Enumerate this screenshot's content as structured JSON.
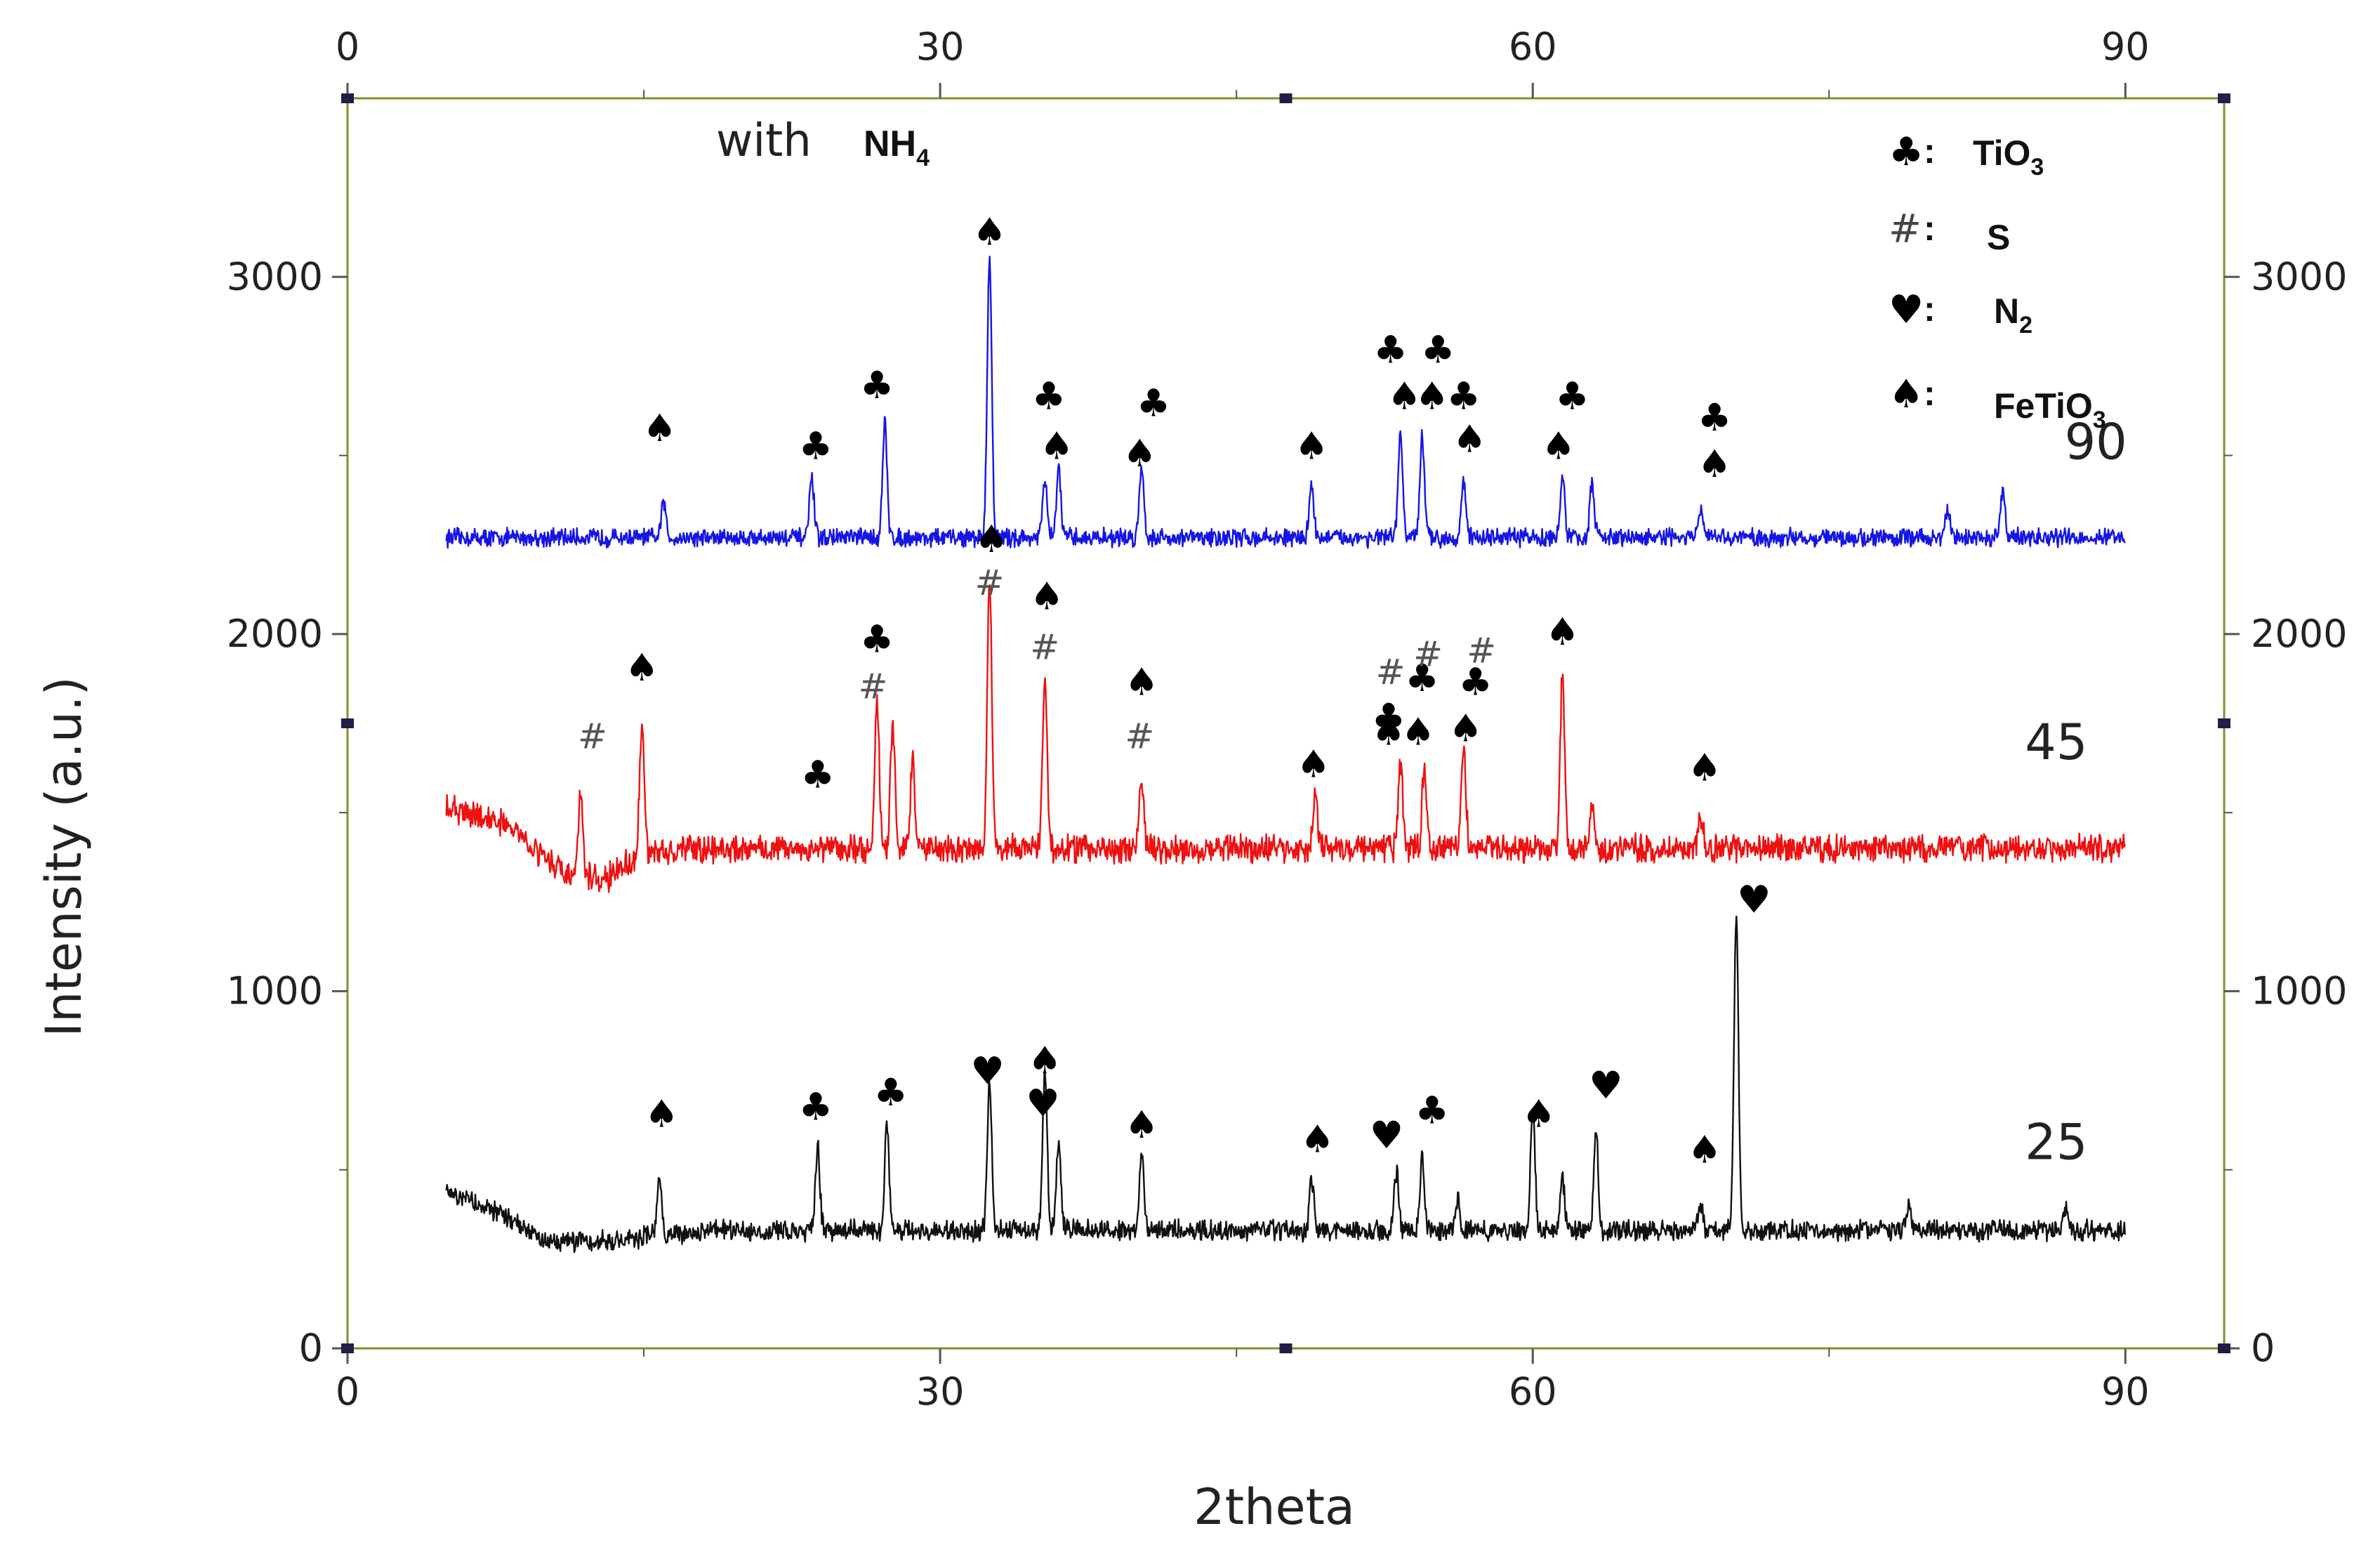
{
  "chart_data": {
    "type": "line",
    "title": "",
    "xlabel": "2theta",
    "ylabel": "Intensity (a.u.)",
    "xlim": [
      0,
      95
    ],
    "ylim": [
      0,
      3500
    ],
    "x_ticks": [
      0,
      30,
      60,
      90
    ],
    "y_ticks": [
      0,
      1000,
      2000,
      3000
    ],
    "x_tick_labels": [
      "0",
      "30",
      "60",
      "90"
    ],
    "y_tick_labels": [
      "0",
      "1000",
      "2000",
      "3000"
    ],
    "annotation_note": {
      "text": "with",
      "species": "NH",
      "sub": "4"
    },
    "legend": [
      {
        "marker": "club",
        "symbol": "♣",
        "label": "TiO",
        "sub": "3"
      },
      {
        "marker": "hash",
        "symbol": "#",
        "label": "S",
        "sub": ""
      },
      {
        "marker": "heart",
        "symbol": "♥",
        "label": "N",
        "sub": "2"
      },
      {
        "marker": "spade",
        "symbol": "♠",
        "label": "FeTiO",
        "sub": "3"
      }
    ],
    "series": [
      {
        "name": "90",
        "color": "#1515e6",
        "baseline": 2270,
        "x_range": [
          5,
          90
        ],
        "noise": 40,
        "label_x": 88.5,
        "label_y": 2490,
        "peaks": [
          [
            16,
            100
          ],
          [
            23.5,
            170
          ],
          [
            27.2,
            320
          ],
          [
            32.5,
            790
          ],
          [
            35.3,
            160
          ],
          [
            36,
            190
          ],
          [
            40.2,
            200
          ],
          [
            48.8,
            150
          ],
          [
            53.3,
            290
          ],
          [
            54.4,
            280
          ],
          [
            56.5,
            160
          ],
          [
            61.5,
            170
          ],
          [
            63,
            150
          ],
          [
            68.5,
            80
          ],
          [
            81,
            80
          ],
          [
            83.8,
            140
          ]
        ]
      },
      {
        "name": "45",
        "color": "#ef1010",
        "baseline": 1400,
        "x_range": [
          5,
          90
        ],
        "noise": 60,
        "label_x": 86.5,
        "label_y": 1650,
        "baseline_shape": [
          [
            5,
            1510
          ],
          [
            8,
            1470
          ],
          [
            11,
            1330
          ],
          [
            13,
            1310
          ],
          [
            15,
            1390
          ],
          [
            20,
            1400
          ],
          [
            90,
            1400
          ]
        ],
        "peaks": [
          [
            11.8,
            220
          ],
          [
            14.9,
            360
          ],
          [
            26.8,
            420
          ],
          [
            27.6,
            350
          ],
          [
            28.6,
            240
          ],
          [
            32.5,
            760
          ],
          [
            35.3,
            480
          ],
          [
            40.2,
            180
          ],
          [
            49,
            150
          ],
          [
            53.3,
            240
          ],
          [
            54.5,
            210
          ],
          [
            56.5,
            290
          ],
          [
            61.5,
            470
          ],
          [
            63,
            110
          ],
          [
            68.5,
            90
          ]
        ]
      },
      {
        "name": "25",
        "color": "#111111",
        "baseline": 320,
        "x_range": [
          5,
          90
        ],
        "noise": 45,
        "label_x": 86.5,
        "label_y": 530,
        "baseline_shape": [
          [
            5,
            440
          ],
          [
            7,
            400
          ],
          [
            10,
            300
          ],
          [
            13,
            300
          ],
          [
            18,
            330
          ],
          [
            90,
            330
          ]
        ],
        "peaks": [
          [
            15.8,
            160
          ],
          [
            23.8,
            230
          ],
          [
            27.3,
            290
          ],
          [
            32.5,
            420
          ],
          [
            35.3,
            440
          ],
          [
            36,
            240
          ],
          [
            40.2,
            220
          ],
          [
            48.8,
            140
          ],
          [
            53.1,
            160
          ],
          [
            54.4,
            210
          ],
          [
            56.2,
            80
          ],
          [
            60,
            340
          ],
          [
            61.5,
            150
          ],
          [
            63.2,
            280
          ],
          [
            68.5,
            70
          ],
          [
            70.3,
            870
          ],
          [
            79,
            70
          ],
          [
            87,
            60
          ]
        ]
      }
    ],
    "markers": [
      {
        "x": 15.8,
        "y": 2540,
        "s": "spade"
      },
      {
        "x": 23.7,
        "y": 2490,
        "s": "club"
      },
      {
        "x": 26.8,
        "y": 2660,
        "s": "club"
      },
      {
        "x": 32.5,
        "y": 3090,
        "s": "spade"
      },
      {
        "x": 35.5,
        "y": 2630,
        "s": "club"
      },
      {
        "x": 35.9,
        "y": 2490,
        "s": "spade"
      },
      {
        "x": 40.1,
        "y": 2470,
        "s": "spade"
      },
      {
        "x": 40.8,
        "y": 2610,
        "s": "club"
      },
      {
        "x": 48.8,
        "y": 2490,
        "s": "spade"
      },
      {
        "x": 52.8,
        "y": 2760,
        "s": "club"
      },
      {
        "x": 55.2,
        "y": 2760,
        "s": "club"
      },
      {
        "x": 53.5,
        "y": 2630,
        "s": "spade"
      },
      {
        "x": 54.9,
        "y": 2630,
        "s": "spade"
      },
      {
        "x": 56.5,
        "y": 2630,
        "s": "club"
      },
      {
        "x": 56.8,
        "y": 2510,
        "s": "spade"
      },
      {
        "x": 61.3,
        "y": 2490,
        "s": "spade"
      },
      {
        "x": 62,
        "y": 2630,
        "s": "club"
      },
      {
        "x": 69.2,
        "y": 2570,
        "s": "club"
      },
      {
        "x": 69.2,
        "y": 2440,
        "s": "spade"
      },
      {
        "x": 32.6,
        "y": 2230,
        "s": "spade"
      },
      {
        "x": 35.4,
        "y": 2070,
        "s": "spade"
      },
      {
        "x": 26.8,
        "y": 1950,
        "s": "club"
      },
      {
        "x": 14.9,
        "y": 1870,
        "s": "spade"
      },
      {
        "x": 40.2,
        "y": 1830,
        "s": "spade"
      },
      {
        "x": 23.8,
        "y": 1570,
        "s": "club"
      },
      {
        "x": 48.9,
        "y": 1600,
        "s": "spade"
      },
      {
        "x": 52.7,
        "y": 1730,
        "s": "club"
      },
      {
        "x": 54.4,
        "y": 1840,
        "s": "club"
      },
      {
        "x": 57.1,
        "y": 1830,
        "s": "club"
      },
      {
        "x": 52.7,
        "y": 1690,
        "s": "spade"
      },
      {
        "x": 54.2,
        "y": 1690,
        "s": "spade"
      },
      {
        "x": 56.6,
        "y": 1700,
        "s": "spade"
      },
      {
        "x": 61.5,
        "y": 1970,
        "s": "spade"
      },
      {
        "x": 68.7,
        "y": 1590,
        "s": "spade"
      },
      {
        "x": 15.9,
        "y": 620,
        "s": "spade"
      },
      {
        "x": 23.7,
        "y": 640,
        "s": "club"
      },
      {
        "x": 27.5,
        "y": 680,
        "s": "club"
      },
      {
        "x": 32.4,
        "y": 740,
        "s": "heart"
      },
      {
        "x": 35.3,
        "y": 770,
        "s": "spade"
      },
      {
        "x": 35.2,
        "y": 650,
        "s": "heart"
      },
      {
        "x": 40.2,
        "y": 590,
        "s": "spade"
      },
      {
        "x": 49.1,
        "y": 550,
        "s": "spade"
      },
      {
        "x": 52.6,
        "y": 560,
        "s": "heart"
      },
      {
        "x": 54.9,
        "y": 630,
        "s": "club"
      },
      {
        "x": 60.3,
        "y": 620,
        "s": "spade"
      },
      {
        "x": 63.7,
        "y": 700,
        "s": "heart"
      },
      {
        "x": 68.7,
        "y": 520,
        "s": "spade"
      },
      {
        "x": 71.2,
        "y": 1220,
        "s": "heart"
      }
    ],
    "hash_marks": [
      {
        "x": 12.4,
        "y": 1680
      },
      {
        "x": 26.6,
        "y": 1820
      },
      {
        "x": 32.5,
        "y": 2110
      },
      {
        "x": 35.3,
        "y": 1930
      },
      {
        "x": 40.1,
        "y": 1680
      },
      {
        "x": 52.8,
        "y": 1860
      },
      {
        "x": 54.7,
        "y": 1910
      },
      {
        "x": 57.4,
        "y": 1920
      }
    ]
  }
}
